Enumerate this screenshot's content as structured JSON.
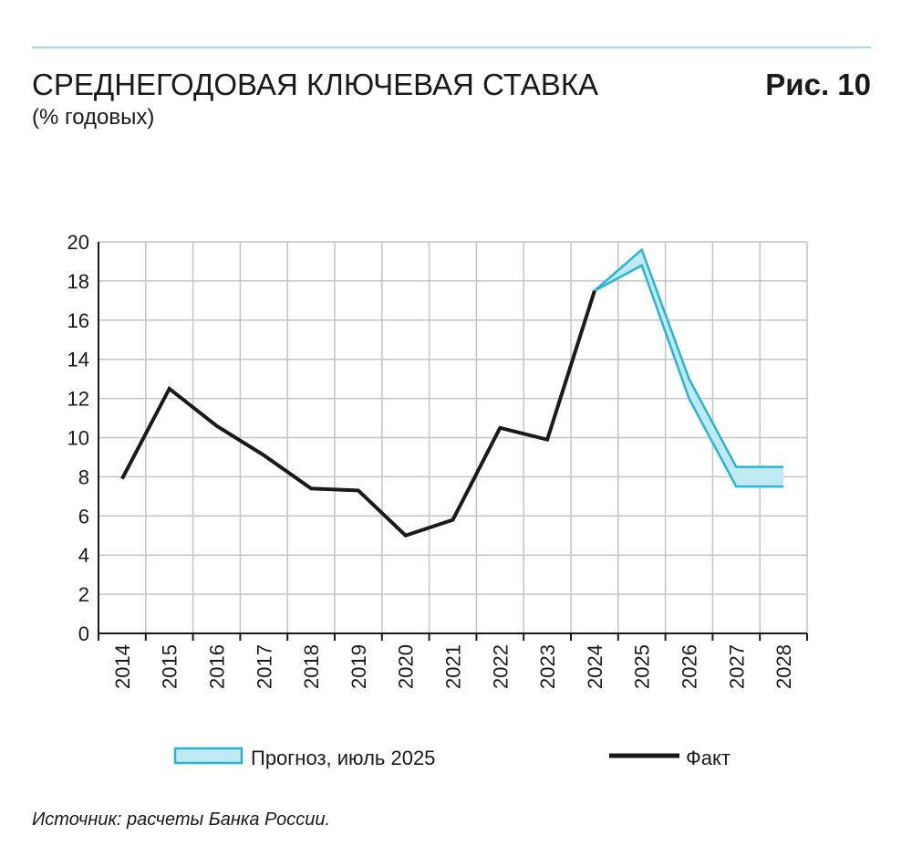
{
  "chart_data": {
    "type": "line",
    "title": "СРЕДНЕГОДОВАЯ КЛЮЧЕВАЯ СТАВКА",
    "subtitle": "(% годовых)",
    "figure_label": "Рис. 10",
    "source": "Источник: расчеты Банка России.",
    "categories": [
      "2014",
      "2015",
      "2016",
      "2017",
      "2018",
      "2019",
      "2020",
      "2021",
      "2022",
      "2023",
      "2024",
      "2025",
      "2026",
      "2027",
      "2028"
    ],
    "ylim": [
      0,
      20
    ],
    "yticks": [
      0,
      2,
      4,
      6,
      8,
      10,
      12,
      14,
      16,
      18,
      20
    ],
    "grid": true,
    "band": {
      "name": "Прогноз, июль 2025",
      "color": "#29b4d6",
      "fill": "#bfe9f3",
      "lower": [
        null,
        null,
        null,
        null,
        null,
        null,
        null,
        null,
        null,
        null,
        17.5,
        18.8,
        12.0,
        7.5,
        7.5
      ],
      "upper": [
        null,
        null,
        null,
        null,
        null,
        null,
        null,
        null,
        null,
        null,
        17.5,
        19.6,
        13.0,
        8.5,
        8.5
      ]
    },
    "series": [
      {
        "name": "Факт",
        "color": "#1a1a1a",
        "values": [
          7.9,
          12.5,
          10.6,
          9.1,
          7.4,
          7.3,
          5.0,
          5.8,
          10.5,
          9.9,
          17.5,
          null,
          null,
          null,
          null
        ]
      }
    ]
  }
}
